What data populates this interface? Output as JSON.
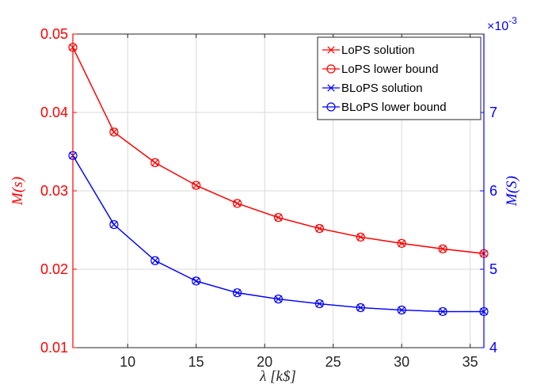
{
  "chart_data": {
    "type": "line",
    "xlabel": "λ [k$]",
    "ylabel_left": "M(s)",
    "ylabel_right": "M(S)",
    "right_axis_multiplier": "×10",
    "right_axis_exponent": "-3",
    "xlim": [
      6,
      36
    ],
    "ylim_left": [
      0.01,
      0.05
    ],
    "ylim_right": [
      4,
      8
    ],
    "x_ticks": [
      10,
      15,
      20,
      25,
      30,
      35
    ],
    "x_tick_labels": [
      "10",
      "15",
      "20",
      "25",
      "30",
      "35"
    ],
    "y_left_ticks": [
      0.01,
      0.02,
      0.03,
      0.04,
      0.05
    ],
    "y_left_tick_labels": [
      "0.01",
      "0.02",
      "0.03",
      "0.04",
      "0.05"
    ],
    "y_right_ticks": [
      4,
      5,
      6,
      7
    ],
    "y_right_tick_labels": [
      "4",
      "5",
      "6",
      "7"
    ],
    "grid": true,
    "legend_position": "top-right",
    "colors": {
      "left_axis": "#ff0000",
      "right_axis": "#0000ff",
      "grid": "#d9d9d9"
    },
    "x": [
      6,
      9,
      12,
      15,
      18,
      21,
      24,
      27,
      30,
      33,
      36
    ],
    "series": [
      {
        "name": "LoPS solution",
        "axis": "left",
        "color": "#ff0000",
        "marker": "x",
        "values": [
          0.0483,
          0.0375,
          0.0336,
          0.0307,
          0.0284,
          0.0266,
          0.0252,
          0.0241,
          0.0233,
          0.0226,
          0.022
        ]
      },
      {
        "name": "LoPS lower bound",
        "axis": "left",
        "color": "#ff0000",
        "marker": "circle",
        "values": [
          0.0483,
          0.0375,
          0.0336,
          0.0307,
          0.0284,
          0.0266,
          0.0252,
          0.0241,
          0.0233,
          0.0226,
          0.022
        ]
      },
      {
        "name": "BLoPS solution",
        "axis": "right",
        "color": "#0000ff",
        "marker": "x",
        "values": [
          6.45,
          5.57,
          5.11,
          4.85,
          4.7,
          4.62,
          4.56,
          4.51,
          4.48,
          4.46,
          4.46
        ]
      },
      {
        "name": "BLoPS lower bound",
        "axis": "right",
        "color": "#0000ff",
        "marker": "circle",
        "values": [
          6.45,
          5.57,
          5.11,
          4.85,
          4.7,
          4.62,
          4.56,
          4.51,
          4.48,
          4.46,
          4.46
        ]
      }
    ]
  }
}
